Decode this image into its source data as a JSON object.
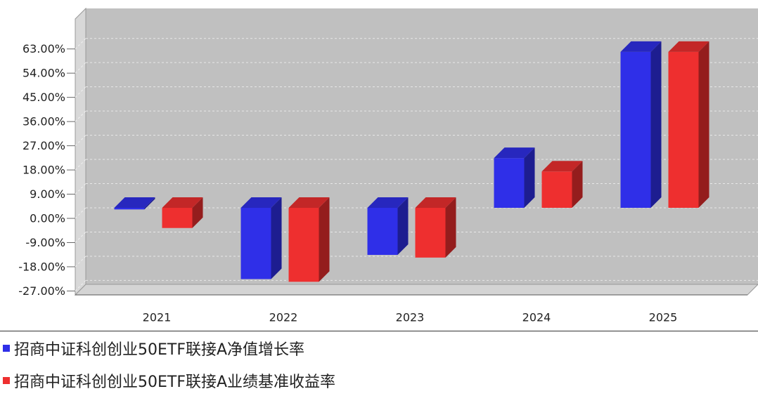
{
  "chart_data": {
    "type": "bar",
    "categories": [
      "2021",
      "2022",
      "2023",
      "2024",
      "2025"
    ],
    "series": [
      {
        "name": "招商中证科创创业50ETF联接A净值增长率",
        "color": "#2f2fe8",
        "values": [
          -0.6,
          -26.5,
          -17.5,
          18.5,
          58.0
        ]
      },
      {
        "name": "招商中证科创创业50ETF联接A业绩基准收益率",
        "color": "#ee2f2f",
        "values": [
          -7.5,
          -27.5,
          -18.5,
          13.5,
          58.0
        ]
      }
    ],
    "yticks": [
      "63.00%",
      "54.00%",
      "45.00%",
      "36.00%",
      "27.00%",
      "18.00%",
      "9.00%",
      "0.00%",
      "-9.00%",
      "-18.00%",
      "-27.00%"
    ],
    "ytick_values": [
      63,
      54,
      45,
      36,
      27,
      18,
      9,
      0,
      -9,
      -18,
      -27
    ],
    "ylim": [
      -31,
      72
    ],
    "grid": true,
    "legend_position": "bottom",
    "plot_background": "#c0c0c0",
    "title": "",
    "xlabel": "",
    "ylabel": ""
  }
}
